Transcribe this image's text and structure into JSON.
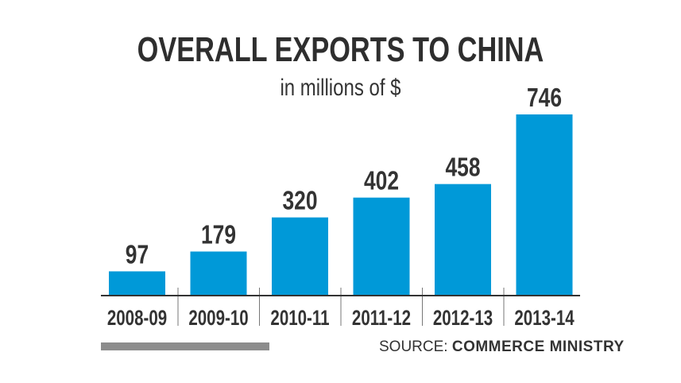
{
  "chart_data": {
    "type": "bar",
    "title": "OVERALL EXPORTS TO CHINA",
    "subtitle": "in millions of $",
    "categories": [
      "2008-09",
      "2009-10",
      "2010-11",
      "2011-12",
      "2012-13",
      "2013-14"
    ],
    "values": [
      97,
      179,
      320,
      402,
      458,
      746
    ],
    "bar_color": "#0099d8",
    "grid": false,
    "source_label": "SOURCE:",
    "source": "COMMERCE MINISTRY"
  }
}
